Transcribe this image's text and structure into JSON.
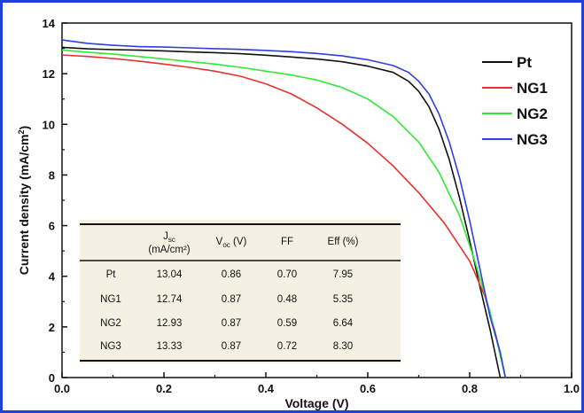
{
  "chart_data": {
    "type": "line",
    "xlabel": "Voltage (V)",
    "ylabel": "Current density (mA/cm²)",
    "ylabel_main": "Current density (mA/cm",
    "ylabel_sup": "2",
    "ylabel_end": ")",
    "xlim": [
      0.0,
      1.0
    ],
    "ylim": [
      0,
      14
    ],
    "x_ticks": [
      "0.0",
      "0.2",
      "0.4",
      "0.6",
      "0.8",
      "1.0"
    ],
    "y_ticks": [
      "0",
      "2",
      "4",
      "6",
      "8",
      "10",
      "12",
      "14"
    ],
    "legend_position": "top-right",
    "grid": false,
    "series": [
      {
        "name": "Pt",
        "color": "#111111",
        "points": [
          [
            0.0,
            13.04
          ],
          [
            0.05,
            12.98
          ],
          [
            0.1,
            12.95
          ],
          [
            0.15,
            12.93
          ],
          [
            0.2,
            12.9
          ],
          [
            0.25,
            12.86
          ],
          [
            0.3,
            12.83
          ],
          [
            0.35,
            12.79
          ],
          [
            0.4,
            12.73
          ],
          [
            0.45,
            12.66
          ],
          [
            0.5,
            12.58
          ],
          [
            0.55,
            12.47
          ],
          [
            0.6,
            12.3
          ],
          [
            0.65,
            12.05
          ],
          [
            0.68,
            11.7
          ],
          [
            0.7,
            11.3
          ],
          [
            0.72,
            10.7
          ],
          [
            0.74,
            9.8
          ],
          [
            0.76,
            8.6
          ],
          [
            0.78,
            7.1
          ],
          [
            0.8,
            5.4
          ],
          [
            0.82,
            3.6
          ],
          [
            0.84,
            1.9
          ],
          [
            0.86,
            0.0
          ]
        ]
      },
      {
        "name": "NG1",
        "color": "#e8322d",
        "points": [
          [
            0.0,
            12.74
          ],
          [
            0.05,
            12.68
          ],
          [
            0.1,
            12.6
          ],
          [
            0.15,
            12.5
          ],
          [
            0.2,
            12.38
          ],
          [
            0.25,
            12.25
          ],
          [
            0.3,
            12.1
          ],
          [
            0.35,
            11.9
          ],
          [
            0.4,
            11.6
          ],
          [
            0.45,
            11.2
          ],
          [
            0.5,
            10.65
          ],
          [
            0.55,
            10.0
          ],
          [
            0.6,
            9.25
          ],
          [
            0.65,
            8.35
          ],
          [
            0.7,
            7.3
          ],
          [
            0.75,
            6.1
          ],
          [
            0.8,
            4.6
          ],
          [
            0.83,
            3.2
          ],
          [
            0.85,
            1.8
          ],
          [
            0.87,
            0.0
          ]
        ]
      },
      {
        "name": "NG2",
        "color": "#33e83a",
        "points": [
          [
            0.0,
            12.93
          ],
          [
            0.05,
            12.85
          ],
          [
            0.1,
            12.77
          ],
          [
            0.15,
            12.68
          ],
          [
            0.2,
            12.58
          ],
          [
            0.25,
            12.48
          ],
          [
            0.3,
            12.38
          ],
          [
            0.35,
            12.25
          ],
          [
            0.4,
            12.1
          ],
          [
            0.45,
            11.95
          ],
          [
            0.5,
            11.75
          ],
          [
            0.55,
            11.45
          ],
          [
            0.6,
            11.0
          ],
          [
            0.65,
            10.3
          ],
          [
            0.7,
            9.3
          ],
          [
            0.74,
            8.1
          ],
          [
            0.78,
            6.4
          ],
          [
            0.81,
            4.6
          ],
          [
            0.84,
            2.6
          ],
          [
            0.87,
            0.0
          ]
        ]
      },
      {
        "name": "NG3",
        "color": "#2f3fe0",
        "points": [
          [
            0.0,
            13.33
          ],
          [
            0.05,
            13.2
          ],
          [
            0.1,
            13.12
          ],
          [
            0.15,
            13.07
          ],
          [
            0.2,
            13.05
          ],
          [
            0.25,
            13.02
          ],
          [
            0.3,
            12.99
          ],
          [
            0.35,
            12.96
          ],
          [
            0.4,
            12.92
          ],
          [
            0.45,
            12.87
          ],
          [
            0.5,
            12.8
          ],
          [
            0.55,
            12.7
          ],
          [
            0.6,
            12.55
          ],
          [
            0.65,
            12.32
          ],
          [
            0.68,
            12.05
          ],
          [
            0.7,
            11.7
          ],
          [
            0.72,
            11.2
          ],
          [
            0.74,
            10.4
          ],
          [
            0.76,
            9.3
          ],
          [
            0.78,
            7.9
          ],
          [
            0.8,
            6.2
          ],
          [
            0.82,
            4.3
          ],
          [
            0.84,
            2.4
          ],
          [
            0.86,
            1.0
          ],
          [
            0.87,
            0.0
          ]
        ]
      }
    ],
    "table": {
      "headers": [
        {
          "main": "",
          "sub": "",
          "after": "",
          "line2": ""
        },
        {
          "main": "J",
          "sub": "sc",
          "after": "",
          "line2": "(mA/cm²)"
        },
        {
          "main": "V",
          "sub": "oc",
          "after": " (V)",
          "line2": ""
        },
        {
          "main": "FF",
          "sub": "",
          "after": "",
          "line2": ""
        },
        {
          "main": "Eff (%)",
          "sub": "",
          "after": "",
          "line2": ""
        }
      ],
      "rows": [
        [
          "Pt",
          "13.04",
          "0.86",
          "0.70",
          "7.95"
        ],
        [
          "NG1",
          "12.74",
          "0.87",
          "0.48",
          "5.35"
        ],
        [
          "NG2",
          "12.93",
          "0.87",
          "0.59",
          "6.64"
        ],
        [
          "NG3",
          "13.33",
          "0.87",
          "0.72",
          "8.30"
        ]
      ]
    }
  }
}
